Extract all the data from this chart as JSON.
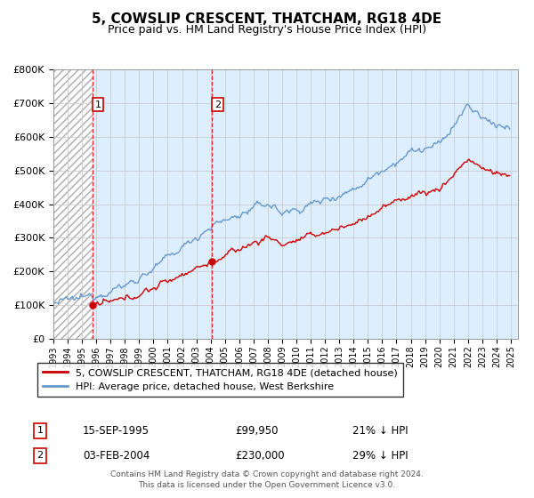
{
  "title": "5, COWSLIP CRESCENT, THATCHAM, RG18 4DE",
  "subtitle": "Price paid vs. HM Land Registry's House Price Index (HPI)",
  "ylim": [
    0,
    800000
  ],
  "yticks": [
    0,
    100000,
    200000,
    300000,
    400000,
    500000,
    600000,
    700000,
    800000
  ],
  "ytick_labels": [
    "£0",
    "£100K",
    "£200K",
    "£300K",
    "£400K",
    "£500K",
    "£600K",
    "£700K",
    "£800K"
  ],
  "xlim_start": 1993.0,
  "xlim_end": 2025.5,
  "transaction1_date": 1995.71,
  "transaction1_price": 99950,
  "transaction1_label": "1",
  "transaction2_date": 2004.09,
  "transaction2_price": 230000,
  "transaction2_label": "2",
  "red_line_color": "#cc0000",
  "blue_line_color": "#6699cc",
  "grid_color": "#cccccc",
  "bg_color": "#ddeeff",
  "legend_label1": "5, COWSLIP CRESCENT, THATCHAM, RG18 4DE (detached house)",
  "legend_label2": "HPI: Average price, detached house, West Berkshire",
  "annotation1_num": "1",
  "annotation1_date": "15-SEP-1995",
  "annotation1_price": "£99,950",
  "annotation1_hpi": "21% ↓ HPI",
  "annotation2_num": "2",
  "annotation2_date": "03-FEB-2004",
  "annotation2_price": "£230,000",
  "annotation2_hpi": "29% ↓ HPI",
  "footer": "Contains HM Land Registry data © Crown copyright and database right 2024.\nThis data is licensed under the Open Government Licence v3.0."
}
